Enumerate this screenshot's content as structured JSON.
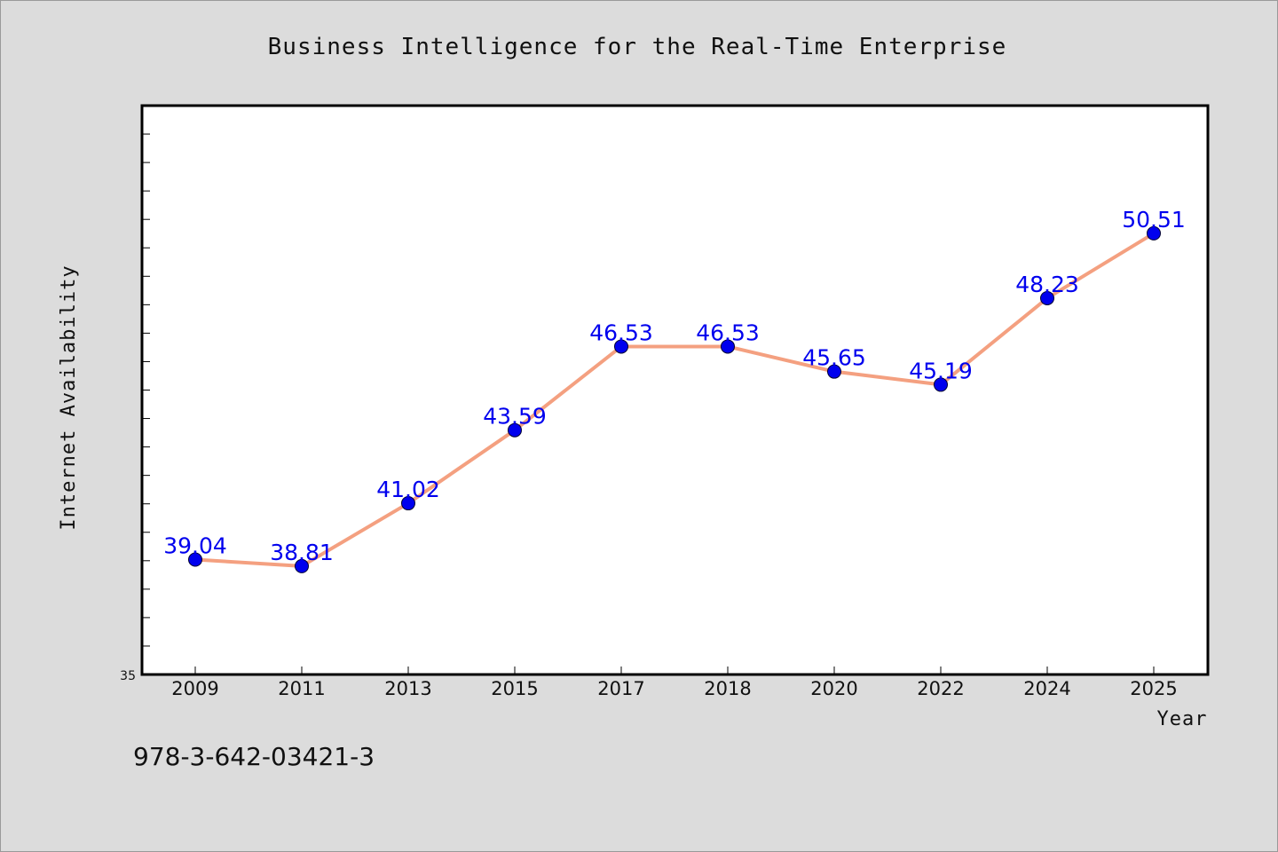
{
  "chart_data": {
    "type": "line",
    "title": "Business Intelligence for the Real-Time Enterprise",
    "xlabel": "Year",
    "ylabel": "Internet Availability",
    "categories": [
      "2009",
      "2011",
      "2013",
      "2015",
      "2017",
      "2018",
      "2020",
      "2022",
      "2024",
      "2025"
    ],
    "series": [
      {
        "values": [
          39.04,
          38.81,
          41.02,
          43.59,
          46.53,
          46.53,
          45.65,
          45.19,
          48.23,
          50.51
        ],
        "labels": [
          "39.04",
          "38.81",
          "41.02",
          "43.59",
          "46.53",
          "46.53",
          "45.65",
          "45.19",
          "48.23",
          "50.51"
        ]
      }
    ],
    "ylim": [
      35,
      55
    ],
    "y_tick_label": "35",
    "grid": false,
    "line_color": "#f4a080",
    "marker_color": "#0000ee",
    "label_color": "#0000ee"
  },
  "footer": {
    "isbn": "978-3-642-03421-3"
  }
}
